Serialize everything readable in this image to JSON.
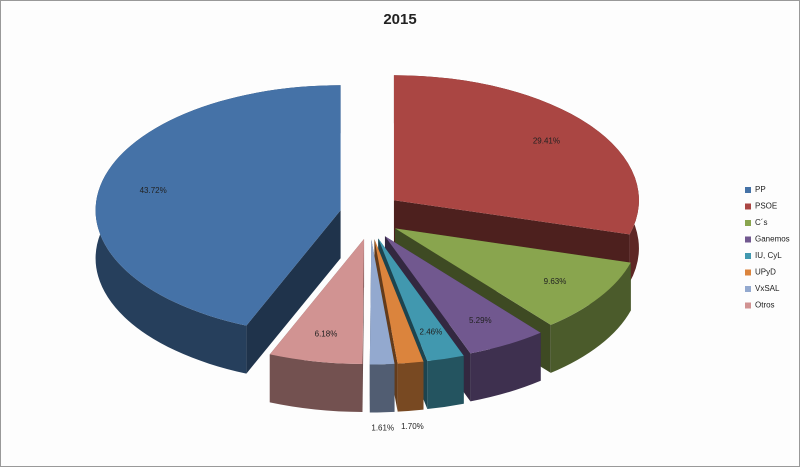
{
  "chart_data": {
    "type": "pie3d",
    "title": "2015",
    "categories": [
      "PP",
      "PSOE",
      "C´s",
      "Ganemos",
      "IU, CyL",
      "UPyD",
      "VxSAL",
      "Otros"
    ],
    "values": [
      43.72,
      29.41,
      9.63,
      5.29,
      2.46,
      1.7,
      1.61,
      6.18
    ],
    "value_labels": [
      "43.72%",
      "29.41%",
      "9.63%",
      "5.29%",
      "2.46%",
      "1.70%",
      "1.61%",
      "6.18%"
    ],
    "colors": [
      "#4572a7",
      "#aa4643",
      "#89a54e",
      "#71588f",
      "#4198af",
      "#db843d",
      "#93a9cf",
      "#d19392"
    ],
    "legend": "right"
  }
}
